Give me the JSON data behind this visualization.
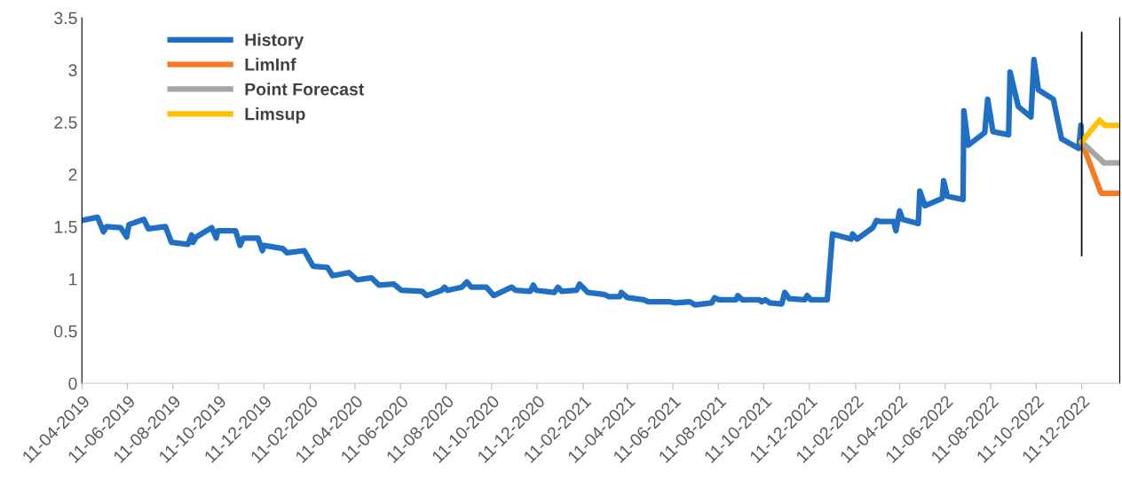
{
  "chart_data": {
    "type": "line",
    "xlim": [
      "2019-04-11",
      "2023-01-31"
    ],
    "ylim": [
      0,
      3.5
    ],
    "yticks": [
      0,
      0.5,
      1,
      1.5,
      2,
      2.5,
      3,
      3.5
    ],
    "xticks": [
      {
        "value": "2019-04-11",
        "label": "11-04-2019"
      },
      {
        "value": "2019-06-11",
        "label": "11-06-2019"
      },
      {
        "value": "2019-08-11",
        "label": "11-08-2019"
      },
      {
        "value": "2019-10-11",
        "label": "11-10-2019"
      },
      {
        "value": "2019-12-11",
        "label": "11-12-2019"
      },
      {
        "value": "2020-02-11",
        "label": "11-02-2020"
      },
      {
        "value": "2020-04-11",
        "label": "11-04-2020"
      },
      {
        "value": "2020-06-11",
        "label": "11-06-2020"
      },
      {
        "value": "2020-08-11",
        "label": "11-08-2020"
      },
      {
        "value": "2020-10-11",
        "label": "11-10-2020"
      },
      {
        "value": "2020-12-11",
        "label": "11-12-2020"
      },
      {
        "value": "2021-02-11",
        "label": "11-02-2021"
      },
      {
        "value": "2021-04-11",
        "label": "11-04-2021"
      },
      {
        "value": "2021-06-11",
        "label": "11-06-2021"
      },
      {
        "value": "2021-08-11",
        "label": "11-08-2021"
      },
      {
        "value": "2021-10-11",
        "label": "11-10-2021"
      },
      {
        "value": "2021-12-11",
        "label": "11-12-2021"
      },
      {
        "value": "2022-02-11",
        "label": "11-02-2022"
      },
      {
        "value": "2022-04-11",
        "label": "11-04-2022"
      },
      {
        "value": "2022-06-11",
        "label": "11-06-2022"
      },
      {
        "value": "2022-08-11",
        "label": "11-08-2022"
      },
      {
        "value": "2022-10-11",
        "label": "11-10-2022"
      },
      {
        "value": "2022-12-11",
        "label": "11-12-2022"
      }
    ],
    "grid": false,
    "legend": "top left",
    "marker": "none",
    "line_style": "solid",
    "ref_lines": [
      {
        "axis": "x",
        "value": "2022-12-11",
        "color": "#000000"
      }
    ],
    "series": [
      {
        "name": "History",
        "color": "#1f6fc5",
        "x": [
          "2019-04-11",
          "2019-05-02",
          "2019-05-10",
          "2019-05-14",
          "2019-06-02",
          "2019-06-10",
          "2019-06-13",
          "2019-07-03",
          "2019-07-09",
          "2019-08-01",
          "2019-08-09",
          "2019-08-31",
          "2019-09-05",
          "2019-09-07",
          "2019-09-11",
          "2019-10-02",
          "2019-10-08",
          "2019-10-10",
          "2019-11-03",
          "2019-11-09",
          "2019-11-13",
          "2019-12-03",
          "2019-12-09",
          "2019-12-11",
          "2020-01-05",
          "2020-01-11",
          "2020-02-03",
          "2020-02-15",
          "2020-03-05",
          "2020-03-12",
          "2020-04-03",
          "2020-04-14",
          "2020-05-03",
          "2020-05-13",
          "2020-06-02",
          "2020-06-12",
          "2020-07-10",
          "2020-07-16",
          "2020-08-05",
          "2020-08-09",
          "2020-08-13",
          "2020-09-01",
          "2020-09-08",
          "2020-09-14",
          "2020-10-04",
          "2020-10-14",
          "2020-11-07",
          "2020-11-12",
          "2020-12-02",
          "2020-12-06",
          "2020-12-10",
          "2021-01-03",
          "2021-01-08",
          "2021-01-13",
          "2021-02-02",
          "2021-02-06",
          "2021-02-17",
          "2021-03-11",
          "2021-03-17",
          "2021-04-01",
          "2021-04-03",
          "2021-04-11",
          "2021-05-03",
          "2021-05-09",
          "2021-06-08",
          "2021-06-14",
          "2021-07-04",
          "2021-07-11",
          "2021-08-02",
          "2021-08-06",
          "2021-08-12",
          "2021-09-04",
          "2021-09-06",
          "2021-09-12",
          "2021-10-05",
          "2021-10-08",
          "2021-10-13",
          "2021-10-19",
          "2021-11-04",
          "2021-11-08",
          "2021-11-14",
          "2021-12-05",
          "2021-12-08",
          "2021-12-13",
          "2022-01-04",
          "2022-01-11",
          "2022-02-05",
          "2022-02-07",
          "2022-02-13",
          "2022-03-06",
          "2022-03-11",
          "2022-03-15",
          "2022-04-03",
          "2022-04-06",
          "2022-04-11",
          "2022-04-15",
          "2022-05-06",
          "2022-05-08",
          "2022-05-15",
          "2022-06-07",
          "2022-06-09",
          "2022-06-14",
          "2022-07-05",
          "2022-07-06",
          "2022-07-12",
          "2022-08-03",
          "2022-08-07",
          "2022-08-14",
          "2022-09-04",
          "2022-09-06",
          "2022-09-17",
          "2022-10-04",
          "2022-10-08",
          "2022-10-14",
          "2022-11-03",
          "2022-11-14",
          "2022-12-07",
          "2022-12-10",
          "2022-12-11"
        ],
        "values": [
          1.56,
          1.59,
          1.45,
          1.5,
          1.49,
          1.4,
          1.52,
          1.57,
          1.48,
          1.5,
          1.35,
          1.33,
          1.42,
          1.35,
          1.4,
          1.49,
          1.39,
          1.46,
          1.46,
          1.32,
          1.39,
          1.39,
          1.27,
          1.32,
          1.29,
          1.25,
          1.27,
          1.12,
          1.11,
          1.03,
          1.06,
          0.99,
          1.01,
          0.94,
          0.95,
          0.89,
          0.88,
          0.84,
          0.89,
          0.92,
          0.89,
          0.92,
          0.97,
          0.92,
          0.92,
          0.84,
          0.92,
          0.89,
          0.88,
          0.94,
          0.89,
          0.87,
          0.92,
          0.88,
          0.89,
          0.95,
          0.87,
          0.85,
          0.83,
          0.83,
          0.87,
          0.82,
          0.8,
          0.78,
          0.78,
          0.77,
          0.78,
          0.75,
          0.77,
          0.82,
          0.8,
          0.8,
          0.84,
          0.8,
          0.8,
          0.78,
          0.8,
          0.77,
          0.76,
          0.87,
          0.81,
          0.8,
          0.84,
          0.8,
          0.8,
          1.43,
          1.38,
          1.43,
          1.38,
          1.49,
          1.56,
          1.55,
          1.55,
          1.46,
          1.65,
          1.57,
          1.53,
          1.84,
          1.7,
          1.77,
          1.94,
          1.79,
          1.76,
          2.61,
          2.28,
          2.4,
          2.72,
          2.41,
          2.38,
          2.98,
          2.65,
          2.55,
          3.1,
          2.81,
          2.72,
          2.34,
          2.25,
          2.47,
          2.31
        ]
      },
      {
        "name": "LimInf",
        "color": "#f47b20",
        "x": [
          "2022-12-11",
          "2023-01-06",
          "2023-01-31"
        ],
        "values": [
          2.31,
          1.82,
          1.82
        ]
      },
      {
        "name": "Point Forecast",
        "color": "#a5a5a5",
        "x": [
          "2022-12-11",
          "2023-01-10",
          "2023-01-31"
        ],
        "values": [
          2.31,
          2.11,
          2.11
        ]
      },
      {
        "name": "Limsup",
        "color": "#ffc000",
        "x": [
          "2022-12-11",
          "2023-01-04",
          "2023-01-11",
          "2023-01-31"
        ],
        "values": [
          2.31,
          2.52,
          2.47,
          2.47
        ]
      }
    ]
  }
}
